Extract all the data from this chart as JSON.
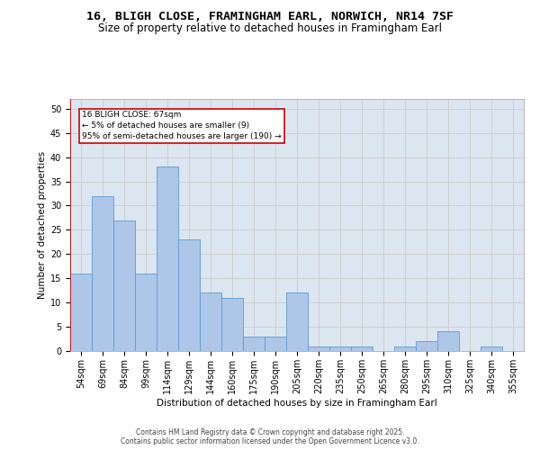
{
  "title1": "16, BLIGH CLOSE, FRAMINGHAM EARL, NORWICH, NR14 7SF",
  "title2": "Size of property relative to detached houses in Framingham Earl",
  "xlabel": "Distribution of detached houses by size in Framingham Earl",
  "ylabel": "Number of detached properties",
  "bin_labels": [
    "54sqm",
    "69sqm",
    "84sqm",
    "99sqm",
    "114sqm",
    "129sqm",
    "144sqm",
    "160sqm",
    "175sqm",
    "190sqm",
    "205sqm",
    "220sqm",
    "235sqm",
    "250sqm",
    "265sqm",
    "280sqm",
    "295sqm",
    "310sqm",
    "325sqm",
    "340sqm",
    "355sqm"
  ],
  "bar_values": [
    16,
    32,
    27,
    16,
    38,
    23,
    12,
    11,
    3,
    3,
    12,
    1,
    1,
    1,
    0,
    1,
    2,
    4,
    0,
    1,
    0
  ],
  "bar_color": "#aec6e8",
  "bar_edge_color": "#5b9bd5",
  "vline_color": "#cc0000",
  "annotation_text": "16 BLIGH CLOSE: 67sqm\n← 5% of detached houses are smaller (9)\n95% of semi-detached houses are larger (190) →",
  "annotation_box_color": "#ffffff",
  "annotation_box_edge": "#cc0000",
  "ylim": [
    0,
    52
  ],
  "yticks": [
    0,
    5,
    10,
    15,
    20,
    25,
    30,
    35,
    40,
    45,
    50
  ],
  "grid_color": "#cccccc",
  "background_color": "#dce6f0",
  "footer1": "Contains HM Land Registry data © Crown copyright and database right 2025.",
  "footer2": "Contains public sector information licensed under the Open Government Licence v3.0.",
  "title_fontsize": 9.5,
  "subtitle_fontsize": 8.5,
  "axis_label_fontsize": 7.5,
  "tick_fontsize": 7,
  "footer_fontsize": 5.5
}
